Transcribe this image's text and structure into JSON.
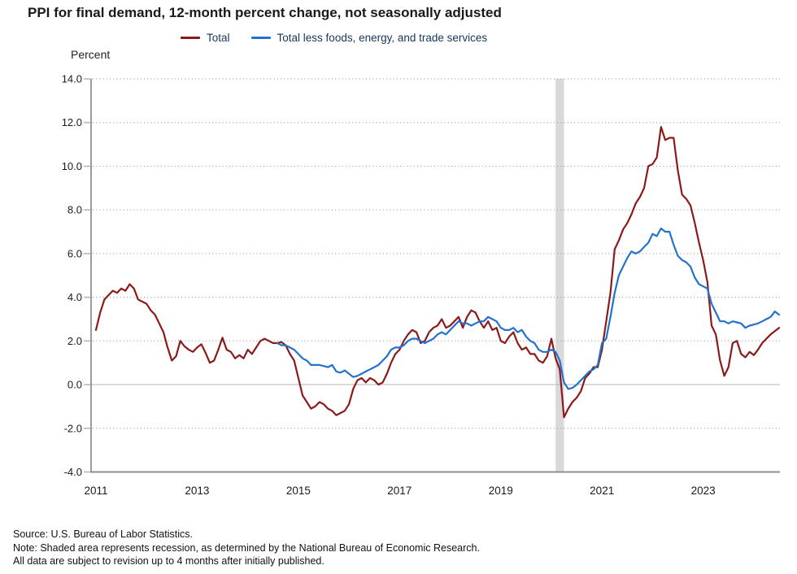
{
  "footer": {
    "source_line": "Source: U.S. Bureau of Labor Statistics.",
    "note_line": "Note: Shaded area represents recession, as determined by the National Bureau of Economic Research.",
    "revision_line": "All data are subject to revision up to 4 months after initially published."
  },
  "chart_data": {
    "type": "line",
    "title": "PPI for final demand, 12-month percent change, not seasonally adjusted",
    "ylabel": "Percent",
    "xlabel": "",
    "ylim": [
      -4.0,
      14.0
    ],
    "ytick_step": 2.0,
    "xticks": [
      "2011",
      "2013",
      "2015",
      "2017",
      "2019",
      "2021",
      "2023"
    ],
    "x_start": "2011-01",
    "x_end": "2024-07",
    "frequency": "monthly",
    "grid": "horizontal-dotted",
    "zero_line": true,
    "legend_position": "top",
    "recession_band": {
      "start": "2020-02",
      "end": "2020-04",
      "color": "#D9D9D9"
    },
    "series": [
      {
        "name": "Total",
        "color": "#8B1A1A",
        "start": "2011-01",
        "values": [
          2.5,
          3.3,
          3.9,
          4.1,
          4.3,
          4.2,
          4.4,
          4.3,
          4.6,
          4.4,
          3.9,
          3.8,
          3.7,
          3.4,
          3.2,
          2.8,
          2.4,
          1.7,
          1.1,
          1.3,
          2.0,
          1.75,
          1.6,
          1.5,
          1.7,
          1.85,
          1.45,
          1.0,
          1.1,
          1.6,
          2.15,
          1.6,
          1.5,
          1.2,
          1.35,
          1.2,
          1.6,
          1.4,
          1.7,
          2.0,
          2.1,
          2.0,
          1.9,
          1.9,
          1.95,
          1.8,
          1.4,
          1.1,
          0.3,
          -0.5,
          -0.8,
          -1.1,
          -1.0,
          -0.8,
          -0.9,
          -1.1,
          -1.2,
          -1.4,
          -1.3,
          -1.2,
          -0.9,
          -0.2,
          0.2,
          0.3,
          0.1,
          0.3,
          0.2,
          0.0,
          0.1,
          0.5,
          1.0,
          1.4,
          1.6,
          2.0,
          2.3,
          2.5,
          2.4,
          1.9,
          2.0,
          2.4,
          2.6,
          2.7,
          3.0,
          2.6,
          2.7,
          2.9,
          3.1,
          2.6,
          3.1,
          3.4,
          3.3,
          2.9,
          2.6,
          2.9,
          2.5,
          2.6,
          2.0,
          1.9,
          2.2,
          2.4,
          1.9,
          1.6,
          1.7,
          1.4,
          1.4,
          1.1,
          1.0,
          1.3,
          2.1,
          1.2,
          0.7,
          -1.5,
          -1.1,
          -0.8,
          -0.6,
          -0.3,
          0.3,
          0.5,
          0.8,
          0.8,
          1.6,
          2.9,
          4.2,
          6.2,
          6.6,
          7.1,
          7.4,
          7.8,
          8.3,
          8.6,
          9.0,
          10.0,
          10.1,
          10.4,
          11.8,
          11.2,
          11.3,
          11.3,
          9.8,
          8.7,
          8.5,
          8.2,
          7.4,
          6.5,
          5.7,
          4.7,
          2.7,
          2.3,
          1.1,
          0.4,
          0.8,
          1.9,
          2.0,
          1.4,
          1.25,
          1.5,
          1.35,
          1.6,
          1.9,
          2.1,
          2.3,
          2.45,
          2.6
        ]
      },
      {
        "name": "Total less foods, energy, and trade services",
        "color": "#2272CE",
        "start": "2014-08",
        "values": [
          1.9,
          1.8,
          1.8,
          1.7,
          1.6,
          1.4,
          1.2,
          1.1,
          0.9,
          0.9,
          0.9,
          0.85,
          0.8,
          0.9,
          0.6,
          0.55,
          0.65,
          0.5,
          0.35,
          0.4,
          0.5,
          0.6,
          0.7,
          0.8,
          0.9,
          1.1,
          1.3,
          1.6,
          1.7,
          1.7,
          1.8,
          2.0,
          2.1,
          2.1,
          2.0,
          1.9,
          2.0,
          2.1,
          2.3,
          2.4,
          2.3,
          2.5,
          2.7,
          2.9,
          2.8,
          2.8,
          2.7,
          2.8,
          2.9,
          2.9,
          3.1,
          3.0,
          2.9,
          2.6,
          2.5,
          2.5,
          2.6,
          2.4,
          2.5,
          2.2,
          2.0,
          1.9,
          1.6,
          1.5,
          1.5,
          1.6,
          1.5,
          1.1,
          0.1,
          -0.2,
          -0.15,
          0.0,
          0.2,
          0.4,
          0.6,
          0.7,
          0.9,
          1.9,
          2.1,
          3.1,
          4.2,
          5.0,
          5.4,
          5.8,
          6.1,
          6.0,
          6.1,
          6.3,
          6.5,
          6.9,
          6.8,
          7.15,
          7.0,
          7.0,
          6.4,
          5.9,
          5.7,
          5.6,
          5.4,
          4.9,
          4.6,
          4.5,
          4.4,
          3.7,
          3.3,
          2.9,
          2.9,
          2.8,
          2.9,
          2.85,
          2.8,
          2.6,
          2.7,
          2.75,
          2.8,
          2.9,
          3.0,
          3.1,
          3.35,
          3.2
        ]
      }
    ]
  }
}
